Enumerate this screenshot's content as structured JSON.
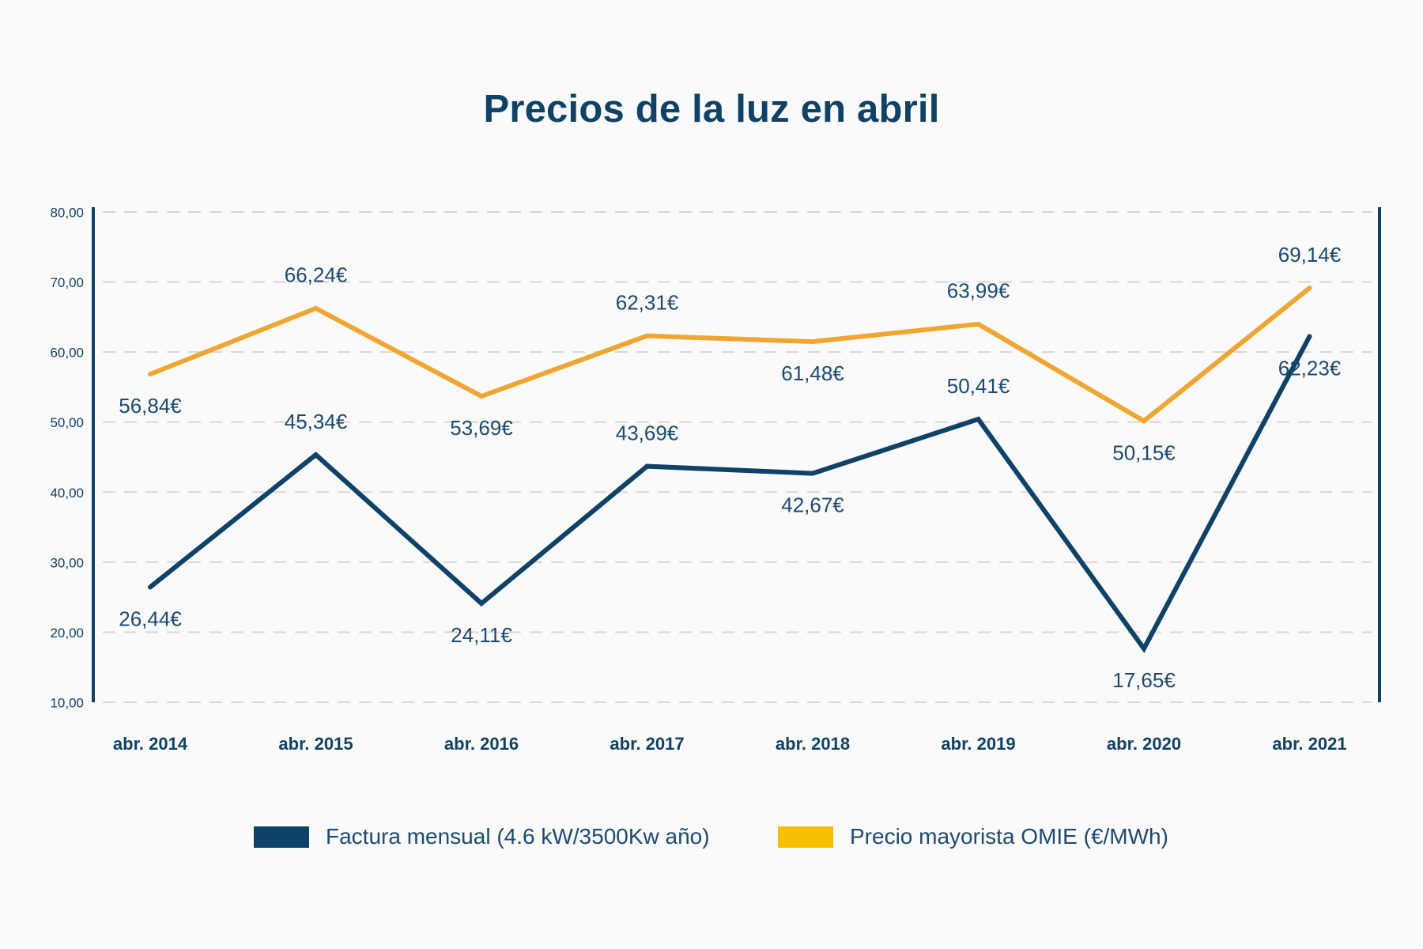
{
  "chart_data": {
    "type": "line",
    "title": "Precios de la luz en abril",
    "categories": [
      "abr. 2014",
      "abr. 2015",
      "abr. 2016",
      "abr. 2017",
      "abr. 2018",
      "abr. 2019",
      "abr. 2020",
      "abr. 2021"
    ],
    "yticks": [
      "80,00",
      "70,00",
      "60,00",
      "50,00",
      "40,00",
      "30,00",
      "20,00",
      "10,00"
    ],
    "ylim": [
      10,
      80
    ],
    "grid": true,
    "legend_position": "bottom",
    "series": [
      {
        "name": "Factura mensual (4.6 kW/3500Kw año)",
        "color": "#0e4268",
        "values": [
          26.44,
          45.34,
          24.11,
          43.69,
          42.67,
          50.41,
          17.65,
          62.23
        ],
        "labels": [
          "26,44€",
          "45,34€",
          "24,11€",
          "43,69€",
          "42,67€",
          "50,41€",
          "17,65€",
          "62,23€"
        ]
      },
      {
        "name": "Precio mayorista OMIE (€/MWh)",
        "color": "#f0a630",
        "legend_color": "#f6c000",
        "values": [
          56.84,
          66.24,
          53.69,
          62.31,
          61.48,
          63.99,
          50.15,
          69.14
        ],
        "labels": [
          "56,84€",
          "66,24€",
          "53,69€",
          "62,31€",
          "61,48€",
          "63,99€",
          "50,15€",
          "69,14€"
        ]
      }
    ]
  }
}
